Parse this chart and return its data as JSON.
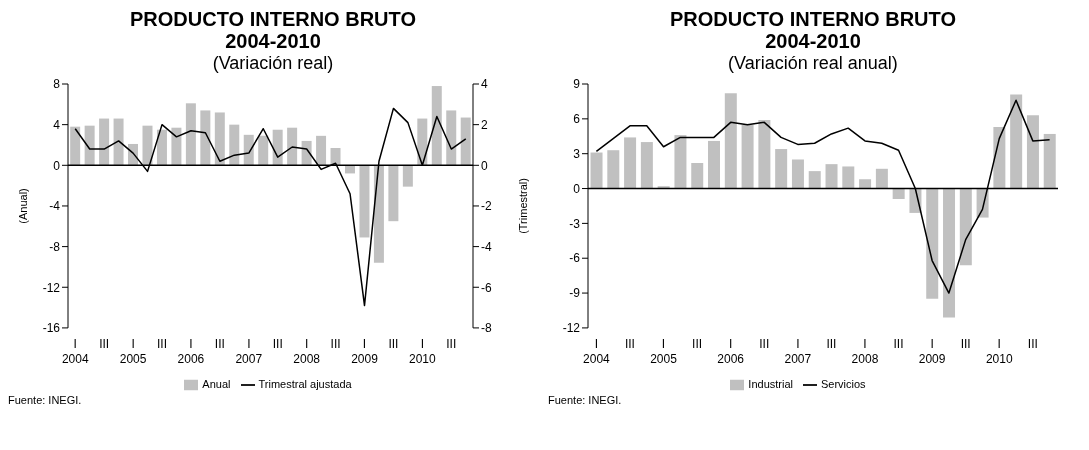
{
  "chart_data": [
    {
      "type": "bar",
      "title": "PRODUCTO INTERNO BRUTO\n2004-2010",
      "subtitle": "(Variación real)",
      "ylabel": "(Anual)",
      "y2label": "(Trimestral)",
      "categories": [
        "I\n2004",
        null,
        "III",
        null,
        "I\n2005",
        null,
        "III",
        null,
        "I\n2006",
        null,
        "III",
        null,
        "I\n2007",
        null,
        "III",
        null,
        "I\n2008",
        null,
        "III",
        null,
        "I\n2009",
        null,
        "III",
        null,
        "I\n2010",
        null,
        "III",
        null
      ],
      "series": [
        {
          "name": "Anual",
          "color": "#c0c0c0",
          "values": [
            3.8,
            3.9,
            4.6,
            4.6,
            2.1,
            3.9,
            3.5,
            3.7,
            6.1,
            5.4,
            5.2,
            4.0,
            3.0,
            2.9,
            3.5,
            3.7,
            2.4,
            2.9,
            1.7,
            -0.8,
            -7.1,
            -9.6,
            -5.5,
            -2.1,
            4.6,
            7.8,
            5.4,
            4.7
          ]
        },
        {
          "name": "Trimestral ajustada",
          "type": "line",
          "axis": "y2",
          "color": "#000000",
          "values": [
            1.8,
            0.8,
            0.8,
            1.2,
            0.6,
            -0.3,
            2.0,
            1.4,
            1.7,
            1.6,
            0.2,
            0.5,
            0.6,
            1.8,
            0.4,
            0.9,
            0.8,
            -0.2,
            0.1,
            -1.4,
            -6.9,
            0.2,
            2.8,
            2.1,
            0.0,
            2.4,
            0.8,
            1.3
          ]
        }
      ],
      "ylim": [
        -16,
        8
      ],
      "yticks": [
        -16,
        -12,
        -8,
        -4,
        0,
        4,
        8
      ],
      "y2lim": [
        -8,
        4
      ],
      "y2ticks": [
        -8,
        -6,
        -4,
        -2,
        0,
        2,
        4
      ],
      "legend": "bottom",
      "marker": "none",
      "annotations": [
        "Fuente: INEGI."
      ]
    },
    {
      "type": "bar",
      "title": "PRODUCTO INTERNO BRUTO\n2004-2010",
      "subtitle": "(Variación real anual)",
      "categories": [
        "I\n2004",
        null,
        "III",
        null,
        "I\n2005",
        null,
        "III",
        null,
        "I\n2006",
        null,
        "III",
        null,
        "I\n2007",
        null,
        "III",
        null,
        "I\n2008",
        null,
        "III",
        null,
        "I\n2009",
        null,
        "III",
        null,
        "I\n2010",
        null,
        "III",
        null
      ],
      "series": [
        {
          "name": "Industrial",
          "color": "#c0c0c0",
          "values": [
            3.1,
            3.3,
            4.4,
            4.0,
            0.2,
            4.6,
            2.2,
            4.1,
            8.2,
            5.5,
            5.9,
            3.4,
            2.5,
            1.5,
            2.1,
            1.9,
            0.8,
            1.7,
            -0.9,
            -2.1,
            -9.5,
            -11.1,
            -6.6,
            -2.5,
            5.3,
            8.1,
            6.3,
            4.7
          ]
        },
        {
          "name": "Servicios",
          "type": "line",
          "color": "#000000",
          "values": [
            3.2,
            4.3,
            5.4,
            5.4,
            3.6,
            4.4,
            4.4,
            4.4,
            5.7,
            5.5,
            5.7,
            4.4,
            3.8,
            3.9,
            4.7,
            5.2,
            4.1,
            3.9,
            3.3,
            0.0,
            -6.2,
            -9.0,
            -4.4,
            -1.8,
            4.3,
            7.6,
            4.1,
            4.2
          ]
        }
      ],
      "ylim": [
        -12,
        9
      ],
      "yticks": [
        -12,
        -9,
        -6,
        -3,
        0,
        3,
        6,
        9
      ],
      "legend": "bottom",
      "marker": "none",
      "annotations": [
        "Fuente: INEGI."
      ]
    }
  ]
}
